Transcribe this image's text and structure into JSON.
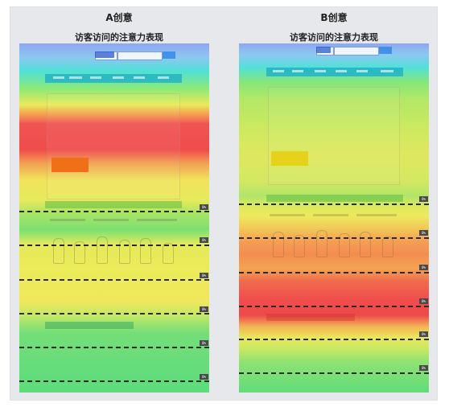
{
  "variants": [
    {
      "label": "A创意",
      "subtitle": "访客访问的注意力表现",
      "percentage_badges": [
        "0%",
        "0%",
        "0%",
        "0%",
        "0%",
        "0%"
      ]
    },
    {
      "label": "B创意",
      "subtitle": "访客访问的注意力表现",
      "percentage_badges": [
        "0%",
        "0%",
        "0%",
        "0%",
        "0%",
        "0%"
      ]
    }
  ],
  "colors": {
    "heat_low": "#5adc78",
    "heat_mid": "#f0e65a",
    "heat_high": "#f05050",
    "heat_cool": "#8ca8f0",
    "frame_bg": "#e7e8ec"
  }
}
